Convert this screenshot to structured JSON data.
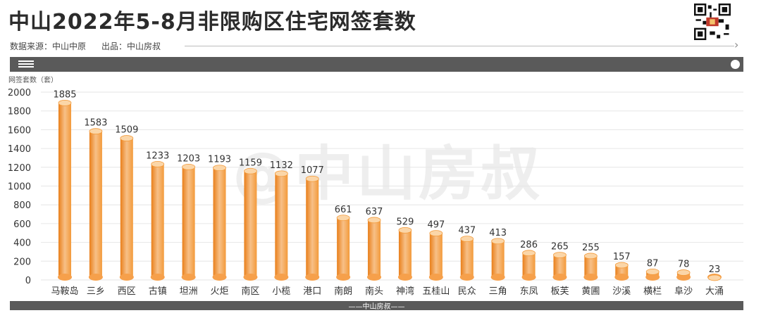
{
  "header": {
    "title": "中山2022年5-8月非限购区住宅网签套数",
    "source": "数据来源：中山中原",
    "producer": "出品：中山房叔"
  },
  "footer": {
    "label": "——中山房叔——"
  },
  "watermark": "@中山房叔",
  "colors": {
    "bar_top": "#f7c088",
    "bar_mid": "#f39a3a",
    "bar_dark": "#e97f1a",
    "bar_cap": "#fbd6a8",
    "bar_base": "#f6a04b",
    "grid": "#e6e6e6",
    "bar_frame": "#5a5a5a"
  },
  "icons": {
    "menu": "menu-icon",
    "toggle": "dot-icon",
    "arrow": "chevron-right-icon",
    "qr": "qr-code-icon"
  },
  "chart_data": {
    "type": "bar",
    "ylabel": "网签套数（套）",
    "ylim": [
      0,
      2000
    ],
    "yticks": [
      0,
      200,
      400,
      600,
      800,
      1000,
      1200,
      1400,
      1600,
      1800,
      2000
    ],
    "grid": true,
    "categories": [
      "马鞍岛",
      "三乡",
      "西区",
      "古镇",
      "坦洲",
      "火炬",
      "南区",
      "小榄",
      "港口",
      "南朗",
      "南头",
      "神湾",
      "五桂山",
      "民众",
      "三角",
      "东凤",
      "板芙",
      "黄圃",
      "沙溪",
      "横栏",
      "阜沙",
      "大涌"
    ],
    "values": [
      1885,
      1583,
      1509,
      1233,
      1203,
      1193,
      1159,
      1132,
      1077,
      661,
      637,
      529,
      497,
      437,
      413,
      286,
      265,
      255,
      157,
      87,
      78,
      23
    ]
  }
}
